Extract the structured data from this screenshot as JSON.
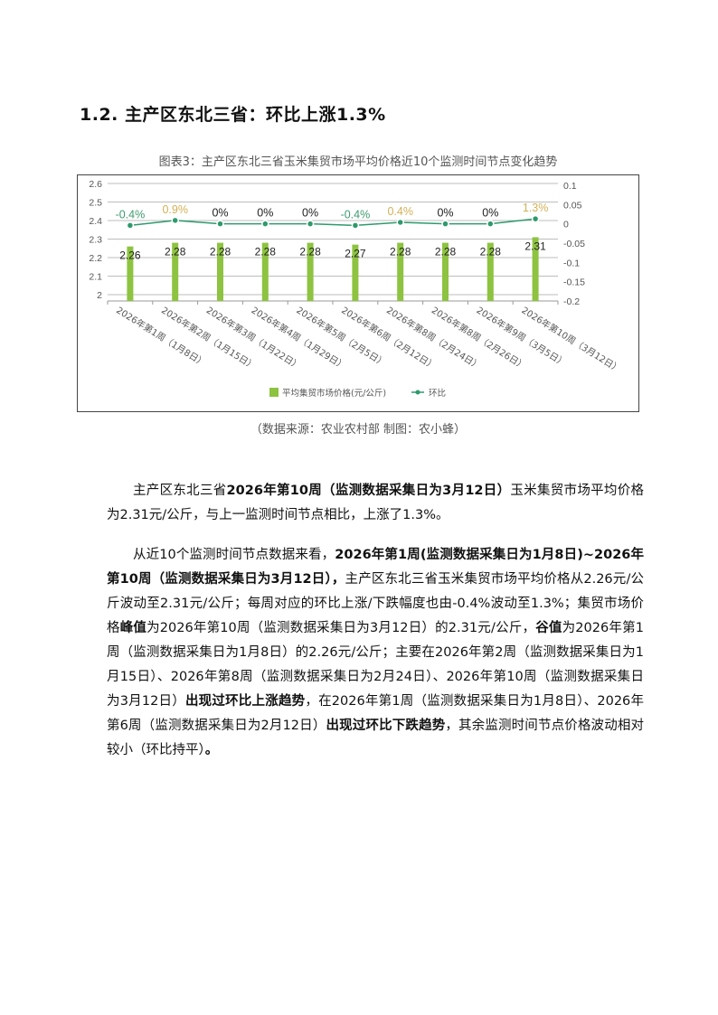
{
  "section_heading": "1.2.  主产区东北三省：环比上涨1.3%",
  "chart_title": "图表3：主产区东北三省玉米集贸市场平均价格近10个监测时间节点变化趋势",
  "source_note": "（数据来源：农业农村部   制图：农小蜂）",
  "chart_data": {
    "type": "bar+line",
    "title": "图表3：主产区东北三省玉米集贸市场平均价格近10个监测时间节点变化趋势",
    "categories": [
      "2026年第1周（1月8日）",
      "2026年第2周（1月15日）",
      "2026年第3周（1月22日）",
      "2026年第4周（1月29日）",
      "2026年第5周（2月5日）",
      "2026年第6周（2月12日）",
      "2026年第8周（2月24日）",
      "2026年第8周（2月26日）",
      "2026年第9周（3月5日）",
      "2026年第10周（3月12日）"
    ],
    "series": [
      {
        "name": "平均集贸市场价格(元/公斤)",
        "type": "bar",
        "axis": "left",
        "values": [
          2.26,
          2.28,
          2.28,
          2.28,
          2.28,
          2.27,
          2.28,
          2.28,
          2.28,
          2.31
        ],
        "labels": [
          "2.26",
          "2.28",
          "2.28",
          "2.28",
          "2.28",
          "2.27",
          "2.28",
          "2.28",
          "2.28",
          "2.31"
        ],
        "color": "#8dc340"
      },
      {
        "name": "环比",
        "type": "line",
        "axis": "right",
        "values": [
          -0.004,
          0.009,
          0,
          0,
          0,
          -0.004,
          0.004,
          0,
          0,
          0.013
        ],
        "labels": [
          "-0.4%",
          "0.9%",
          "0%",
          "0%",
          "0%",
          "-0.4%",
          "0.4%",
          "0%",
          "0%",
          "1.3%"
        ],
        "color": "#2e9a6c"
      }
    ],
    "left_axis": {
      "ylim": [
        2,
        2.6
      ],
      "ticks": [
        "2",
        "2.1",
        "2.2",
        "2.3",
        "2.4",
        "2.5",
        "2.6"
      ]
    },
    "right_axis": {
      "ylim": [
        -0.2,
        0.1
      ],
      "ticks": [
        "-0.2",
        "-0.15",
        "-0.1",
        "-0.05",
        "0",
        "0.05",
        "0.1"
      ]
    },
    "label_colors": {
      "negative": "#3f9b6f",
      "positive": "#d2b157",
      "zero": "#222222"
    },
    "grid": true,
    "legend_placement": "bottom"
  },
  "paragraphs": [
    [
      {
        "t": "主产区东北三省",
        "b": false
      },
      {
        "t": "2026年第10周（监测数据采集日为3月12日）",
        "b": true
      },
      {
        "t": "玉米集贸市场平均价格为2.31元/公斤，与上一监测时间节点相比，上涨了1.3%。",
        "b": false
      }
    ],
    [
      {
        "t": "从近10个监测时间节点数据来看，",
        "b": false
      },
      {
        "t": "2026年第1周(监测数据采集日为1月8日)~2026年第10周（监测数据采集日为3月12日），",
        "b": true
      },
      {
        "t": "主产区东北三省玉米集贸市场平均价格从2.26元/公斤波动至2.31元/公斤；每周对应的环比上涨/下跌幅度也由-0.4%波动至1.3%；集贸市场价格",
        "b": false
      },
      {
        "t": "峰值",
        "b": true
      },
      {
        "t": "为2026年第10周（监测数据采集日为3月12日）的2.31元/公斤，",
        "b": false
      },
      {
        "t": "谷值",
        "b": true
      },
      {
        "t": "为2026年第1周（监测数据采集日为1月8日）的2.26元/公斤；主要在2026年第2周（监测数据采集日为1月15日）、2026年第8周（监测数据采集日为2月24日）、2026年第10周（监测数据采集日为3月12日）",
        "b": false
      },
      {
        "t": "出现过环比上涨趋势",
        "b": true
      },
      {
        "t": "，在2026年第1周（监测数据采集日为1月8日）、2026年第6周（监测数据采集日为2月12日）",
        "b": false
      },
      {
        "t": "出现过环比下跌趋势",
        "b": true
      },
      {
        "t": "，其余监测时间节点价格波动相对较小（环比持平）",
        "b": false
      },
      {
        "t": "。",
        "b": true
      }
    ]
  ]
}
